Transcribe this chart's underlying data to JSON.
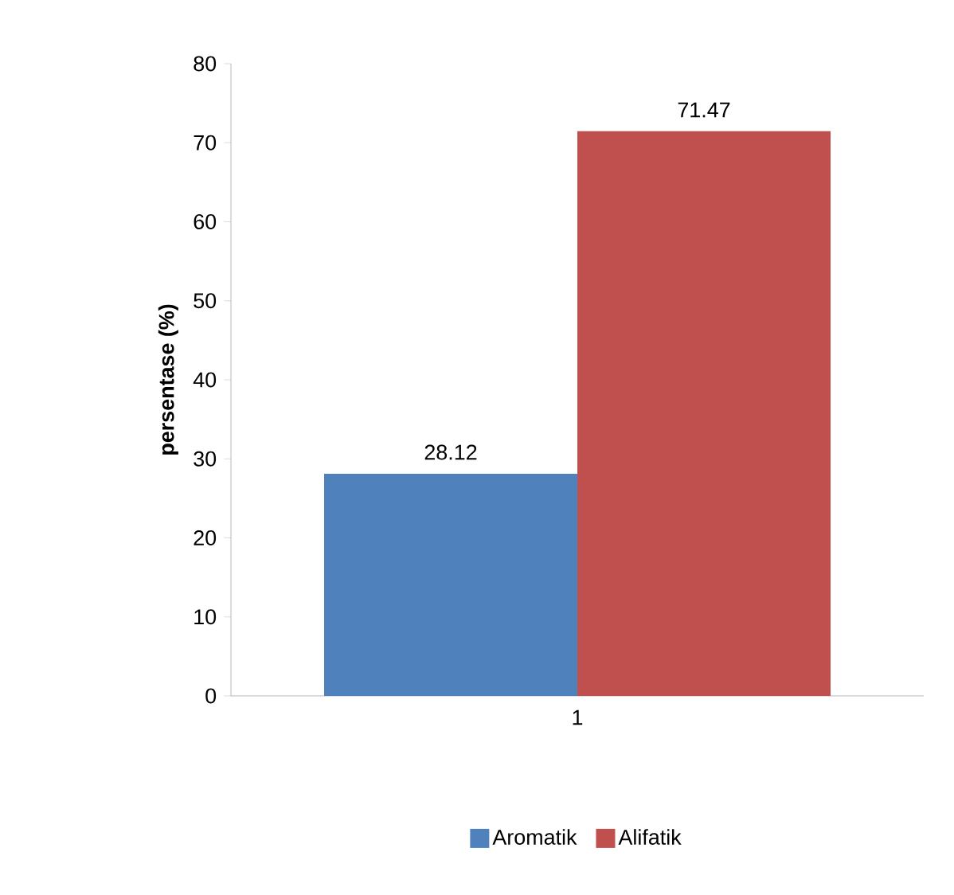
{
  "chart_data": {
    "type": "bar",
    "ylabel": "persentase (%)",
    "categories": [
      "1"
    ],
    "series": [
      {
        "name": "Aromatik",
        "color": "#4f81bd",
        "values": [
          28.12
        ]
      },
      {
        "name": "Alifatik",
        "color": "#c0504d",
        "values": [
          71.47
        ]
      }
    ],
    "ylim": [
      0,
      80
    ],
    "yticks": [
      0,
      10,
      20,
      30,
      40,
      50,
      60,
      70,
      80
    ],
    "data_labels": true,
    "legend": "bottom",
    "grid": false
  }
}
